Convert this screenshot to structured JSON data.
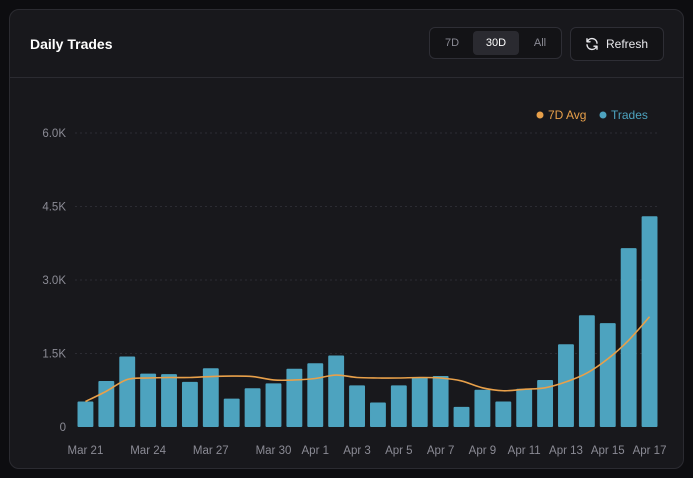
{
  "header": {
    "title": "Daily Trades",
    "ranges": [
      "7D",
      "30D",
      "All"
    ],
    "active_range": "30D",
    "refresh_label": "Refresh",
    "refresh_icon": "refresh-icon"
  },
  "colors": {
    "bar": "#4da3bf",
    "avg_line": "#e8a04a",
    "grid": "#2c2c33"
  },
  "chart_data": {
    "type": "bar",
    "title": "Daily Trades",
    "legend_position": "top-right",
    "grid": true,
    "ylim": [
      0,
      6000
    ],
    "yticks": [
      0,
      1500,
      3000,
      4500,
      6000
    ],
    "ytick_labels": [
      "0",
      "1.5K",
      "3.0K",
      "4.5K",
      "6.0K"
    ],
    "xtick_labels": [
      "Mar 21",
      "Mar 24",
      "Mar 27",
      "Mar 30",
      "Apr 1",
      "Apr 3",
      "Apr 5",
      "Apr 7",
      "Apr 9",
      "Apr 11",
      "Apr 13",
      "Apr 15",
      "Apr 17"
    ],
    "xtick_index": [
      0,
      3,
      6,
      9,
      11,
      13,
      15,
      17,
      19,
      21,
      23,
      25,
      27
    ],
    "categories": [
      "Mar 21",
      "Mar 22",
      "Mar 23",
      "Mar 24",
      "Mar 25",
      "Mar 26",
      "Mar 27",
      "Mar 28",
      "Mar 29",
      "Mar 30",
      "Mar 31",
      "Apr 1",
      "Apr 2",
      "Apr 3",
      "Apr 4",
      "Apr 5",
      "Apr 6",
      "Apr 7",
      "Apr 8",
      "Apr 9",
      "Apr 10",
      "Apr 11",
      "Apr 12",
      "Apr 13",
      "Apr 14",
      "Apr 15",
      "Apr 16",
      "Apr 17"
    ],
    "series": [
      {
        "name": "Trades",
        "type": "bar",
        "values": [
          520,
          940,
          1440,
          1090,
          1080,
          920,
          1200,
          580,
          790,
          890,
          1190,
          1300,
          1460,
          850,
          500,
          850,
          1020,
          1040,
          410,
          760,
          520,
          780,
          960,
          1690,
          2280,
          2120,
          3650,
          4300
        ]
      },
      {
        "name": "7D Avg",
        "type": "line",
        "values": [
          520,
          730,
          970,
          1000,
          1010,
          1010,
          1030,
          1040,
          1030,
          960,
          960,
          990,
          1060,
          1010,
          1000,
          1000,
          1010,
          1000,
          940,
          800,
          740,
          770,
          800,
          920,
          1100,
          1390,
          1770,
          2250
        ]
      }
    ]
  }
}
